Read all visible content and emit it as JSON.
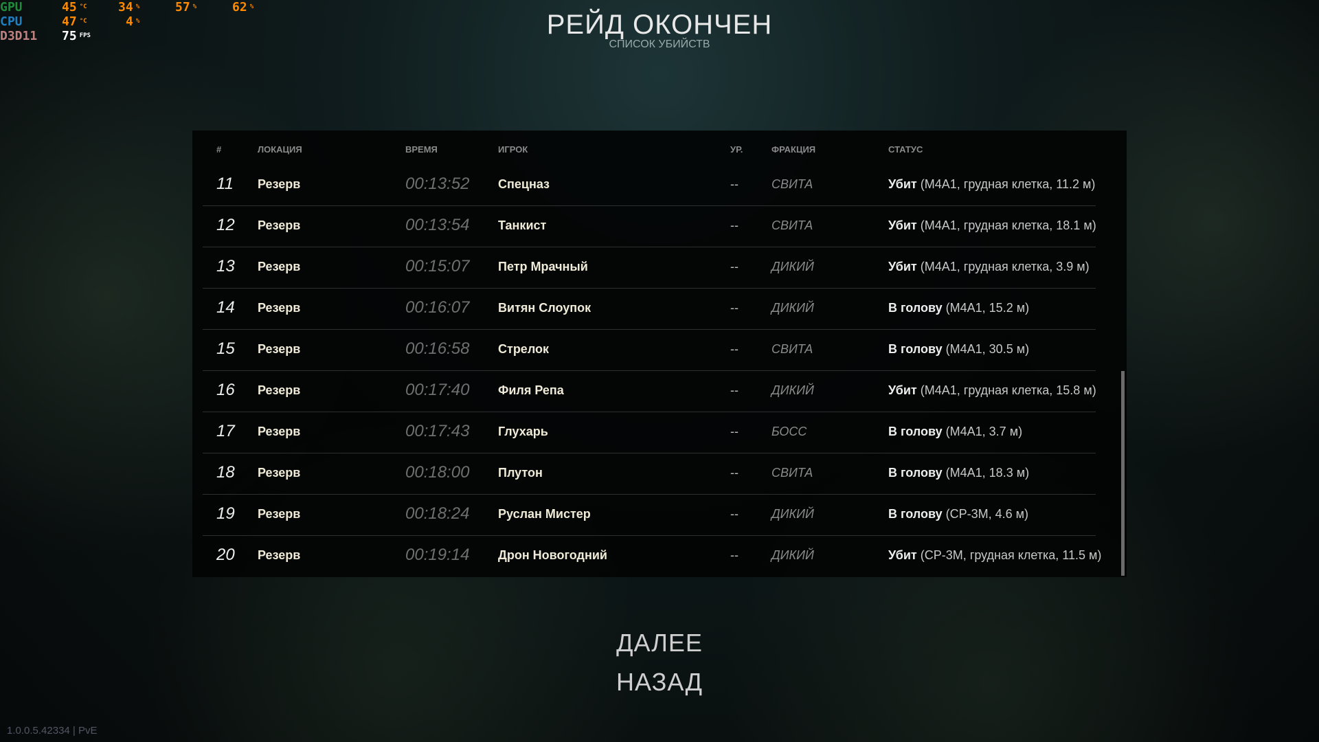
{
  "osd": {
    "gpu_label": "GPU",
    "gpu_temp": "45",
    "gpu_load": "34",
    "gpu_v3": "57",
    "gpu_v4": "62",
    "cpu_label": "CPU",
    "cpu_temp": "47",
    "cpu_load": "4",
    "api_label": "D3D11",
    "fps": "75",
    "unit_c": "°C",
    "unit_pct": "%",
    "unit_fps": "FPS",
    "colors": {
      "gpu": "#1f8a3a",
      "cpu": "#1f7fc0",
      "api": "#c08080",
      "values": "#ff8a00"
    }
  },
  "header": {
    "title": "РЕЙД ОКОНЧЕН",
    "subtitle": "СПИСОК УБИЙСТВ"
  },
  "table": {
    "columns": [
      "#",
      "ЛОКАЦИЯ",
      "ВРЕМЯ",
      "ИГРОК",
      "УР.",
      "ФРАКЦИЯ",
      "СТАТУС"
    ],
    "rows": [
      {
        "num": "11",
        "loc": "Резерв",
        "time": "00:13:52",
        "player": "Спецназ",
        "lvl": "--",
        "faction": "СВИТА",
        "status": "Убит",
        "detail": "(M4A1, грудная клетка, 11.2 м)"
      },
      {
        "num": "12",
        "loc": "Резерв",
        "time": "00:13:54",
        "player": "Танкист",
        "lvl": "--",
        "faction": "СВИТА",
        "status": "Убит",
        "detail": "(M4A1, грудная клетка, 18.1 м)"
      },
      {
        "num": "13",
        "loc": "Резерв",
        "time": "00:15:07",
        "player": "Петр Мрачный",
        "lvl": "--",
        "faction": "ДИКИЙ",
        "status": "Убит",
        "detail": "(M4A1, грудная клетка, 3.9 м)"
      },
      {
        "num": "14",
        "loc": "Резерв",
        "time": "00:16:07",
        "player": "Витян Слоупок",
        "lvl": "--",
        "faction": "ДИКИЙ",
        "status": "В голову",
        "detail": "(M4A1, 15.2 м)"
      },
      {
        "num": "15",
        "loc": "Резерв",
        "time": "00:16:58",
        "player": "Стрелок",
        "lvl": "--",
        "faction": "СВИТА",
        "status": "В голову",
        "detail": "(M4A1, 30.5 м)"
      },
      {
        "num": "16",
        "loc": "Резерв",
        "time": "00:17:40",
        "player": "Филя Репа",
        "lvl": "--",
        "faction": "ДИКИЙ",
        "status": "Убит",
        "detail": "(M4A1, грудная клетка, 15.8 м)"
      },
      {
        "num": "17",
        "loc": "Резерв",
        "time": "00:17:43",
        "player": "Глухарь",
        "lvl": "--",
        "faction": "БОСС",
        "status": "В голову",
        "detail": "(M4A1, 3.7 м)"
      },
      {
        "num": "18",
        "loc": "Резерв",
        "time": "00:18:00",
        "player": "Плутон",
        "lvl": "--",
        "faction": "СВИТА",
        "status": "В голову",
        "detail": "(M4A1, 18.3 м)"
      },
      {
        "num": "19",
        "loc": "Резерв",
        "time": "00:18:24",
        "player": "Руслан Мистер",
        "lvl": "--",
        "faction": "ДИКИЙ",
        "status": "В голову",
        "detail": "(СР-3М, 4.6 м)"
      },
      {
        "num": "20",
        "loc": "Резерв",
        "time": "00:19:14",
        "player": "Дрон Новогодний",
        "lvl": "--",
        "faction": "ДИКИЙ",
        "status": "Убит",
        "detail": "(СР-3М, грудная клетка, 11.5 м)"
      }
    ]
  },
  "buttons": {
    "next": "ДАЛЕЕ",
    "back": "НАЗАД"
  },
  "version": "1.0.0.5.42334 | PvE"
}
